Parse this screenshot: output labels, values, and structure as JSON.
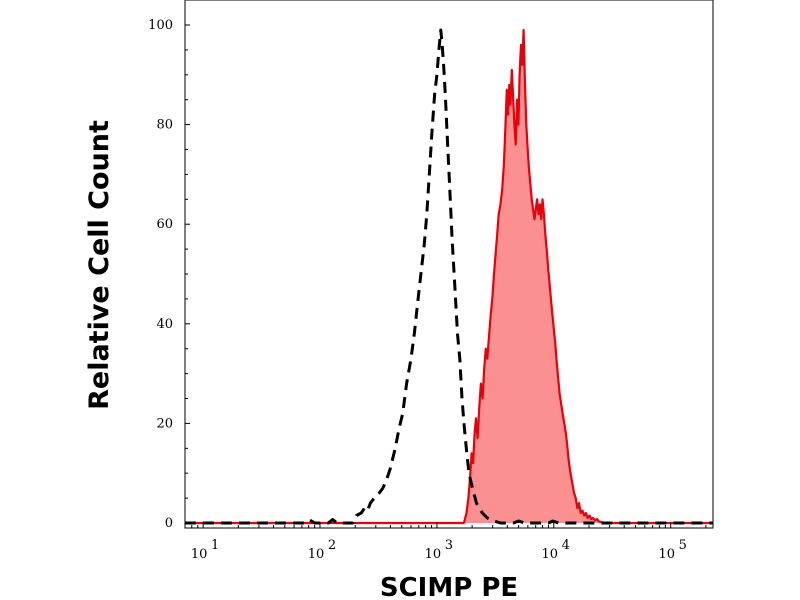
{
  "chart_data": {
    "type": "area",
    "title": "",
    "xlabel": "SCIMP PE",
    "ylabel": "Relative Cell Count",
    "x_scale": "log",
    "xlim": [
      7,
      230000
    ],
    "ylim": [
      0,
      104
    ],
    "x_ticks": [
      {
        "value": 10,
        "base": "10",
        "exp": "1"
      },
      {
        "value": 100,
        "base": "10",
        "exp": "2"
      },
      {
        "value": 1000,
        "base": "10",
        "exp": "3"
      },
      {
        "value": 10000,
        "base": "10",
        "exp": "4"
      },
      {
        "value": 100000,
        "base": "10",
        "exp": "5"
      }
    ],
    "y_ticks": [
      0,
      20,
      40,
      60,
      80,
      100
    ],
    "grid": false,
    "legend": "none",
    "series": [
      {
        "style": "dashed",
        "color": "#000000",
        "fill": "none",
        "points": [
          [
            7,
            0
          ],
          [
            75,
            0
          ],
          [
            82,
            0.6
          ],
          [
            90,
            0
          ],
          [
            118,
            0
          ],
          [
            128,
            0.7
          ],
          [
            140,
            0
          ],
          [
            190,
            0
          ],
          [
            205,
            1.5
          ],
          [
            225,
            2
          ],
          [
            240,
            3
          ],
          [
            255,
            2.5
          ],
          [
            270,
            4
          ],
          [
            290,
            5
          ],
          [
            320,
            6
          ],
          [
            345,
            7
          ],
          [
            375,
            9
          ],
          [
            400,
            11
          ],
          [
            440,
            15
          ],
          [
            475,
            19
          ],
          [
            510,
            22
          ],
          [
            550,
            28
          ],
          [
            600,
            33
          ],
          [
            640,
            38
          ],
          [
            690,
            45
          ],
          [
            730,
            50
          ],
          [
            780,
            56
          ],
          [
            820,
            62
          ],
          [
            860,
            70
          ],
          [
            910,
            79
          ],
          [
            955,
            86
          ],
          [
            1000,
            90
          ],
          [
            1040,
            95
          ],
          [
            1080,
            99
          ],
          [
            1110,
            96
          ],
          [
            1140,
            92
          ],
          [
            1180,
            86
          ],
          [
            1230,
            77
          ],
          [
            1290,
            67
          ],
          [
            1350,
            57
          ],
          [
            1420,
            48
          ],
          [
            1500,
            38
          ],
          [
            1570,
            33
          ],
          [
            1640,
            25
          ],
          [
            1720,
            19
          ],
          [
            1800,
            14
          ],
          [
            1880,
            10
          ],
          [
            1970,
            8
          ],
          [
            2070,
            6
          ],
          [
            2180,
            4
          ],
          [
            2300,
            3
          ],
          [
            2450,
            2
          ],
          [
            2700,
            1
          ],
          [
            3000,
            0.5
          ],
          [
            3500,
            0
          ],
          [
            4500,
            0
          ],
          [
            5000,
            0.4
          ],
          [
            5600,
            0
          ],
          [
            9000,
            0
          ],
          [
            9800,
            0.4
          ],
          [
            11000,
            0
          ],
          [
            230000,
            0
          ]
        ]
      },
      {
        "style": "solid",
        "color": "#e8000b",
        "fill": "#fa9090",
        "points": [
          [
            7,
            0
          ],
          [
            1700,
            0
          ],
          [
            1790,
            2
          ],
          [
            1860,
            5
          ],
          [
            1920,
            9
          ],
          [
            1980,
            14
          ],
          [
            2040,
            12
          ],
          [
            2100,
            18
          ],
          [
            2160,
            21
          ],
          [
            2230,
            17
          ],
          [
            2300,
            23
          ],
          [
            2380,
            28
          ],
          [
            2460,
            25
          ],
          [
            2540,
            31
          ],
          [
            2620,
            35
          ],
          [
            2700,
            33
          ],
          [
            2800,
            38
          ],
          [
            2890,
            42
          ],
          [
            2980,
            45
          ],
          [
            3080,
            50
          ],
          [
            3180,
            54
          ],
          [
            3280,
            58
          ],
          [
            3380,
            62
          ],
          [
            3500,
            64
          ],
          [
            3620,
            67
          ],
          [
            3740,
            72
          ],
          [
            3860,
            80
          ],
          [
            3960,
            87
          ],
          [
            4060,
            82
          ],
          [
            4160,
            88
          ],
          [
            4260,
            84
          ],
          [
            4370,
            91
          ],
          [
            4480,
            86
          ],
          [
            4600,
            80
          ],
          [
            4720,
            76
          ],
          [
            4850,
            85
          ],
          [
            4980,
            80
          ],
          [
            5100,
            90
          ],
          [
            5240,
            96
          ],
          [
            5380,
            92
          ],
          [
            5520,
            99
          ],
          [
            5670,
            88
          ],
          [
            5820,
            80
          ],
          [
            5980,
            75
          ],
          [
            6140,
            71
          ],
          [
            6300,
            68
          ],
          [
            6470,
            65
          ],
          [
            6650,
            63
          ],
          [
            6830,
            61
          ],
          [
            7010,
            63
          ],
          [
            7200,
            65
          ],
          [
            7400,
            62
          ],
          [
            7600,
            64
          ],
          [
            7800,
            61
          ],
          [
            8000,
            65
          ],
          [
            8220,
            62
          ],
          [
            8450,
            58
          ],
          [
            8700,
            55
          ],
          [
            8950,
            51
          ],
          [
            9200,
            48
          ],
          [
            9450,
            45
          ],
          [
            9700,
            42
          ],
          [
            10000,
            39
          ],
          [
            10300,
            36
          ],
          [
            10600,
            32
          ],
          [
            10900,
            29
          ],
          [
            11200,
            26
          ],
          [
            11550,
            24
          ],
          [
            11900,
            22
          ],
          [
            12300,
            20
          ],
          [
            12700,
            18
          ],
          [
            13100,
            15
          ],
          [
            13500,
            12
          ],
          [
            13900,
            10
          ],
          [
            14400,
            8
          ],
          [
            14900,
            6
          ],
          [
            15400,
            5
          ],
          [
            15900,
            3
          ],
          [
            16400,
            4
          ],
          [
            17000,
            2
          ],
          [
            17600,
            2.5
          ],
          [
            18200,
            1.5
          ],
          [
            18800,
            2
          ],
          [
            19500,
            1
          ],
          [
            20200,
            1.5
          ],
          [
            20900,
            0.8
          ],
          [
            21700,
            1
          ],
          [
            22500,
            0.5
          ],
          [
            23400,
            0.8
          ],
          [
            24300,
            0.3
          ],
          [
            25500,
            0.2
          ],
          [
            27000,
            0
          ],
          [
            230000,
            0
          ]
        ]
      }
    ]
  }
}
